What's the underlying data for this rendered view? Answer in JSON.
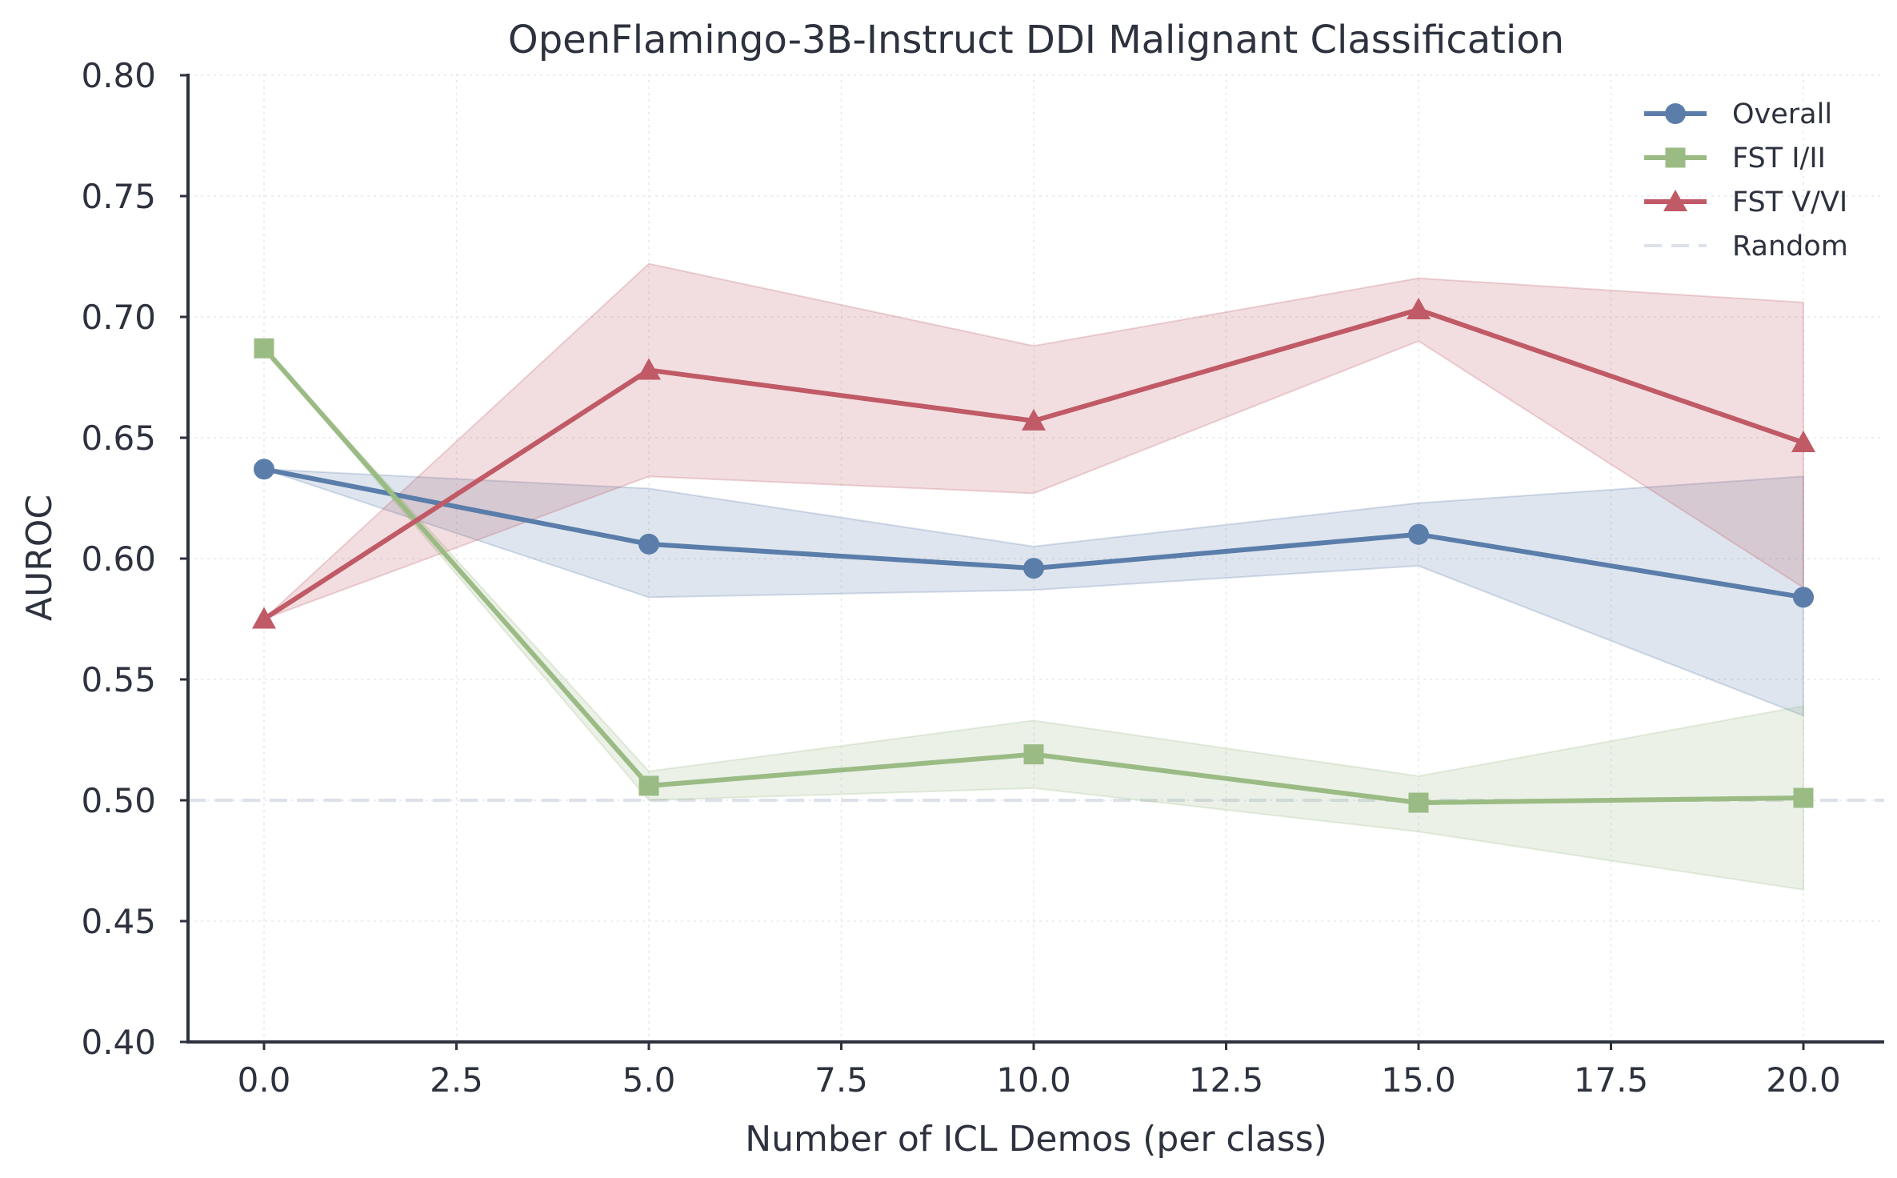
{
  "chart_data": {
    "type": "line",
    "title": "OpenFlamingo-3B-Instruct DDI Malignant Classification",
    "xlabel": "Number of ICL Demos (per class)",
    "ylabel": "AUROC",
    "x": [
      0,
      5,
      10,
      15,
      20
    ],
    "xlim": [
      -1,
      21
    ],
    "ylim": [
      0.4,
      0.8
    ],
    "xticks": [
      0.0,
      2.5,
      5.0,
      7.5,
      10.0,
      12.5,
      15.0,
      17.5,
      20.0
    ],
    "xtick_labels": [
      "0.0",
      "2.5",
      "5.0",
      "7.5",
      "10.0",
      "12.5",
      "15.0",
      "17.5",
      "20.0"
    ],
    "yticks": [
      0.4,
      0.45,
      0.5,
      0.55,
      0.6,
      0.65,
      0.7,
      0.75,
      0.8
    ],
    "ytick_labels": [
      "0.40",
      "0.45",
      "0.50",
      "0.55",
      "0.60",
      "0.65",
      "0.70",
      "0.75",
      "0.80"
    ],
    "grid": true,
    "legend_position": "top-right",
    "series": [
      {
        "name": "Overall",
        "color": "#5a7daa",
        "marker": "circle",
        "values": [
          0.637,
          0.606,
          0.596,
          0.61,
          0.584
        ],
        "lower": [
          0.637,
          0.584,
          0.587,
          0.597,
          0.535
        ],
        "upper": [
          0.637,
          0.629,
          0.605,
          0.623,
          0.634
        ]
      },
      {
        "name": "FST I/II",
        "color": "#9bbb85",
        "marker": "square",
        "values": [
          0.687,
          0.506,
          0.519,
          0.499,
          0.501
        ],
        "lower": [
          0.687,
          0.5,
          0.505,
          0.487,
          0.463
        ],
        "upper": [
          0.687,
          0.512,
          0.533,
          0.51,
          0.539
        ]
      },
      {
        "name": "FST V/VI",
        "color": "#c05a66",
        "marker": "triangle",
        "values": [
          0.575,
          0.678,
          0.657,
          0.703,
          0.648
        ],
        "lower": [
          0.575,
          0.634,
          0.627,
          0.69,
          0.588
        ],
        "upper": [
          0.575,
          0.722,
          0.688,
          0.716,
          0.706
        ]
      }
    ],
    "reference_line": {
      "name": "Random",
      "y": 0.5,
      "color": "#dde1ea"
    }
  }
}
